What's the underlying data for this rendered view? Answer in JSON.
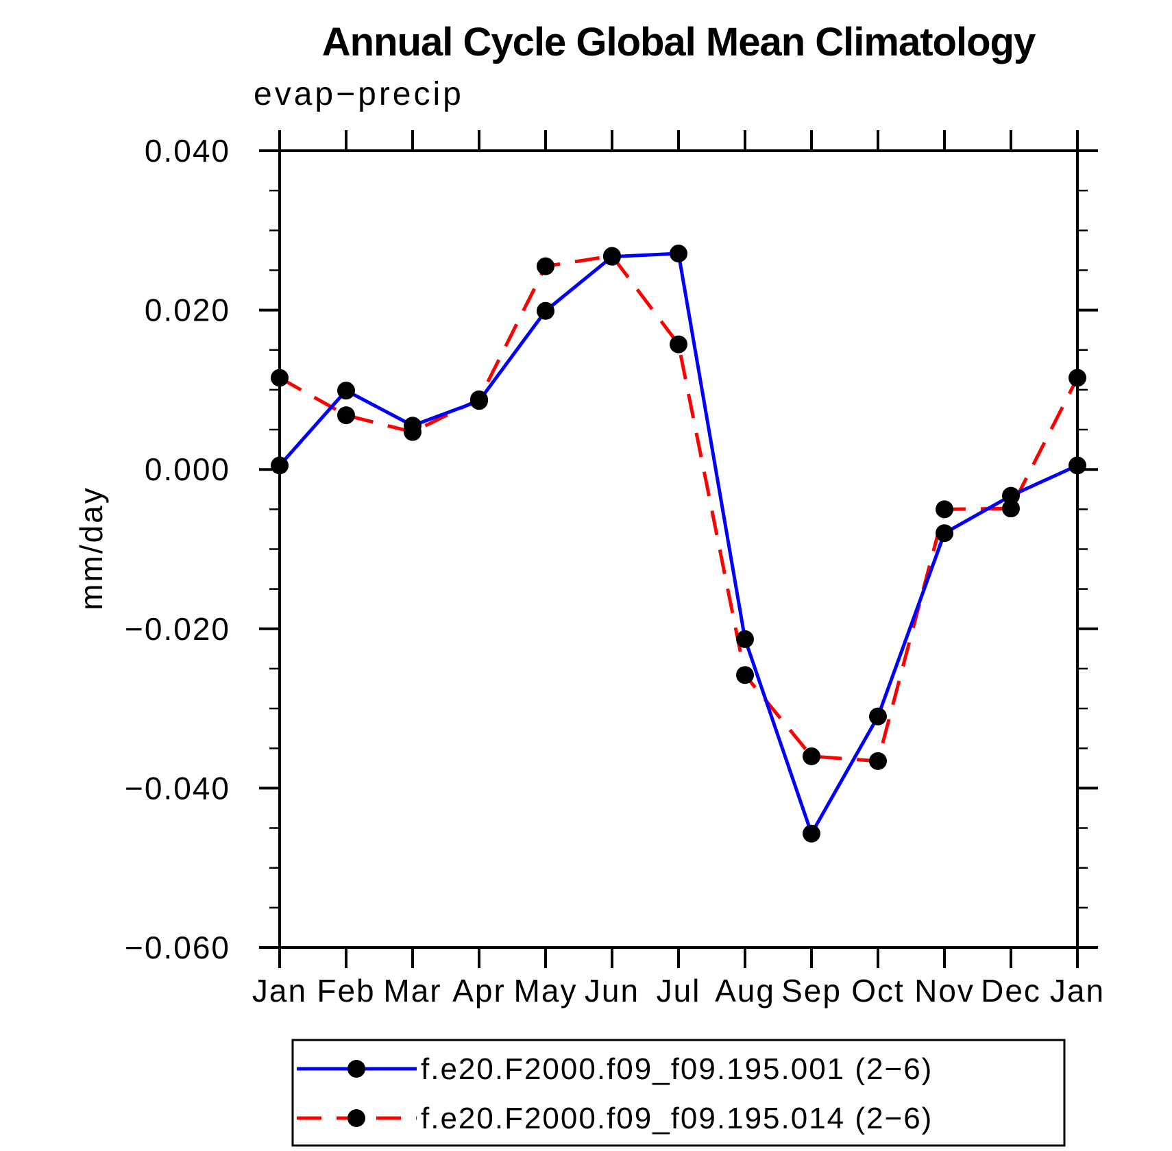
{
  "title": "Annual Cycle Global Mean Climatology",
  "chart_data": {
    "type": "line",
    "title": "Annual Cycle Global Mean Climatology",
    "subtitle": "evap−precip",
    "ylabel": "mm/day",
    "categories": [
      "Jan",
      "Feb",
      "Mar",
      "Apr",
      "May",
      "Jun",
      "Jul",
      "Aug",
      "Sep",
      "Oct",
      "Nov",
      "Dec",
      "Jan"
    ],
    "ylim": [
      -0.06,
      0.04
    ],
    "y_major_ticks": [
      0.04,
      0.02,
      0.0,
      -0.02,
      -0.04,
      -0.06
    ],
    "y_tick_labels": [
      "0.040",
      "0.020",
      "0.000",
      "−0.020",
      "−0.040",
      "−0.060"
    ],
    "y_minor_step": 0.005,
    "grid": false,
    "legend_position": "bottom",
    "axis_color": "#000000",
    "marker_color": "#000000",
    "background_color": "#ffffff",
    "series": [
      {
        "name": "f.e20.F2000.f09_f09.195.001 (2−6)",
        "color": "#0000ff",
        "line_style": "solid",
        "marker": "filled-circle",
        "values": [
          0.0005,
          0.0099,
          0.0055,
          0.0086,
          0.0199,
          0.0267,
          0.0271,
          -0.0213,
          -0.0457,
          -0.031,
          -0.008,
          -0.0033,
          0.0005
        ]
      },
      {
        "name": "f.e20.F2000.f09_f09.195.014 (2−6)",
        "color": "#ff0000",
        "line_style": "dashed",
        "marker": "filled-circle",
        "values": [
          0.0115,
          0.0068,
          0.0047,
          0.0088,
          0.0255,
          0.0268,
          0.0157,
          -0.0258,
          -0.036,
          -0.0366,
          -0.005,
          -0.0049,
          0.0115
        ]
      }
    ]
  }
}
